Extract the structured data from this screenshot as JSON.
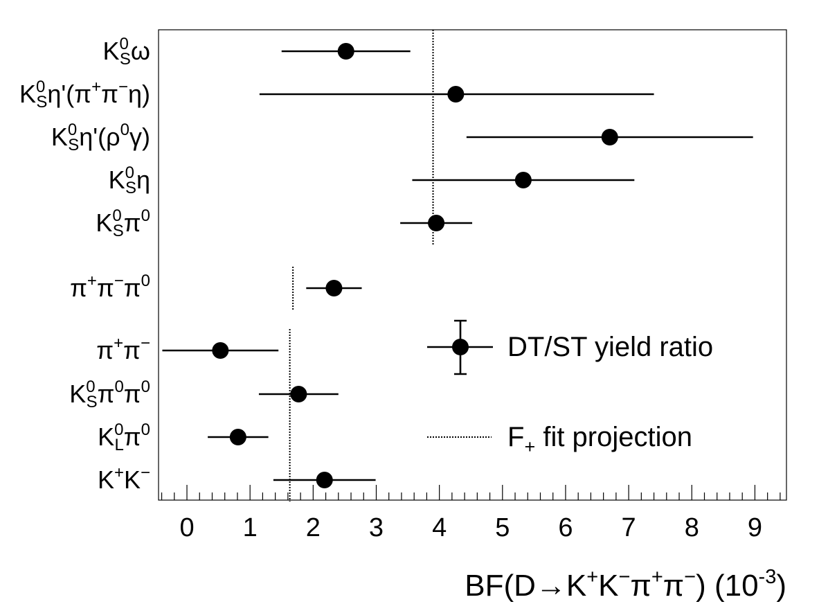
{
  "chart_data": {
    "type": "scatter",
    "orientation": "horizontal",
    "xlim": [
      -0.45,
      9.5
    ],
    "x_ticks": [
      0,
      1,
      2,
      3,
      4,
      5,
      6,
      7,
      8,
      9
    ],
    "x_tick_labels": [
      "0",
      "1",
      "2",
      "3",
      "4",
      "5",
      "6",
      "7",
      "8",
      "9"
    ],
    "xlabel": {
      "prefix": "BF(D",
      "arrow": "→",
      "particles": [
        {
          "base": "K",
          "sup": "+"
        },
        {
          "base": "K",
          "sup": "−"
        },
        {
          "base": "π",
          "sup": "+"
        },
        {
          "base": "π",
          "sup": "−"
        }
      ],
      "unit_open": ") (10",
      "unit_exp": "-3",
      "unit_close": ")"
    },
    "points": [
      {
        "channel": [
          {
            "t": "K"
          },
          {
            "sup": "0"
          },
          {
            "sub": "S"
          },
          {
            "t": "ω"
          }
        ],
        "value": 2.52,
        "err_lo": 1.02,
        "err_hi": 1.02
      },
      {
        "channel": [
          {
            "t": "K"
          },
          {
            "sup": "0"
          },
          {
            "sub": "S"
          },
          {
            "t": "η'(π"
          },
          {
            "sup": "+"
          },
          {
            "t": "π"
          },
          {
            "sup": "−"
          },
          {
            "t": "η)"
          }
        ],
        "value": 4.26,
        "err_lo": 3.11,
        "err_hi": 3.14
      },
      {
        "channel": [
          {
            "t": "K"
          },
          {
            "sup": "0"
          },
          {
            "sub": "S"
          },
          {
            "t": "η'(ρ"
          },
          {
            "sup": "0"
          },
          {
            "t": "γ)"
          }
        ],
        "value": 6.7,
        "err_lo": 2.27,
        "err_hi": 2.27
      },
      {
        "channel": [
          {
            "t": "K"
          },
          {
            "sup": "0"
          },
          {
            "sub": "S"
          },
          {
            "t": "η"
          }
        ],
        "value": 5.33,
        "err_lo": 1.76,
        "err_hi": 1.76
      },
      {
        "channel": [
          {
            "t": "K"
          },
          {
            "sup": "0"
          },
          {
            "sub": "S"
          },
          {
            "t": "π"
          },
          {
            "sup": "0"
          }
        ],
        "value": 3.95,
        "err_lo": 0.57,
        "err_hi": 0.57
      },
      {
        "channel": [
          {
            "t": "π"
          },
          {
            "sup": "+"
          },
          {
            "t": "π"
          },
          {
            "sup": "−"
          },
          {
            "t": "π"
          },
          {
            "sup": "0"
          }
        ],
        "value": 2.33,
        "err_lo": 0.44,
        "err_hi": 0.44
      },
      {
        "channel": [
          {
            "t": "π"
          },
          {
            "sup": "+"
          },
          {
            "t": "π"
          },
          {
            "sup": "−"
          }
        ],
        "value": 0.53,
        "err_lo": 0.92,
        "err_hi": 0.92
      },
      {
        "channel": [
          {
            "t": "K"
          },
          {
            "sup": "0"
          },
          {
            "sub": "S"
          },
          {
            "t": "π"
          },
          {
            "sup": "0"
          },
          {
            "t": "π"
          },
          {
            "sup": "0"
          }
        ],
        "value": 1.77,
        "err_lo": 0.63,
        "err_hi": 0.63
      },
      {
        "channel": [
          {
            "t": "K"
          },
          {
            "sup": "0"
          },
          {
            "sub": "L"
          },
          {
            "t": "π"
          },
          {
            "sup": "0"
          }
        ],
        "value": 0.81,
        "err_lo": 0.48,
        "err_hi": 0.48
      },
      {
        "channel": [
          {
            "t": "K"
          },
          {
            "sup": "+"
          },
          {
            "t": "K"
          },
          {
            "sup": "−"
          }
        ],
        "value": 2.18,
        "err_lo": 0.81,
        "err_hi": 0.81
      }
    ],
    "projections": [
      {
        "value": 3.9,
        "rows": [
          0,
          4
        ]
      },
      {
        "value": 1.68,
        "rows": [
          5,
          5
        ]
      },
      {
        "value": 1.63,
        "rows": [
          6,
          9
        ]
      }
    ],
    "legend": {
      "position": "bottom-right",
      "entries": [
        {
          "kind": "point-with-errors",
          "label": "DT/ST yield ratio"
        },
        {
          "kind": "dotted-line",
          "label_base": "F",
          "label_sub": "+",
          "label_rest": " fit projection"
        }
      ]
    },
    "grid": false
  }
}
